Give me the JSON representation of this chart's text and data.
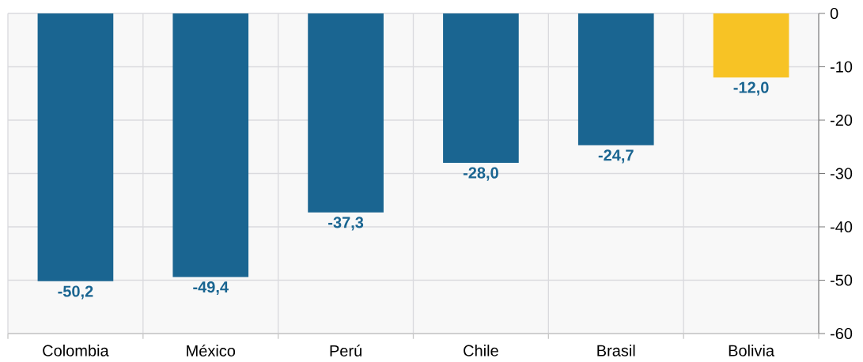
{
  "chart_data": {
    "type": "bar",
    "categories": [
      "Colombia",
      "México",
      "Perú",
      "Chile",
      "Brasil",
      "Bolivia"
    ],
    "values": [
      -50.2,
      -49.4,
      -37.3,
      -28.0,
      -24.7,
      -12.0
    ],
    "colors": [
      "#1a6591",
      "#1a6591",
      "#1a6591",
      "#1a6591",
      "#1a6591",
      "#f7c325"
    ],
    "value_labels": [
      "-50,2",
      "-49,4",
      "-37,3",
      "-28,0",
      "-24,7",
      "-12,0"
    ],
    "ylim": [
      -60,
      0
    ],
    "yticks": [
      0,
      -10,
      -20,
      -30,
      -40,
      -50,
      -60
    ],
    "grid": true
  }
}
